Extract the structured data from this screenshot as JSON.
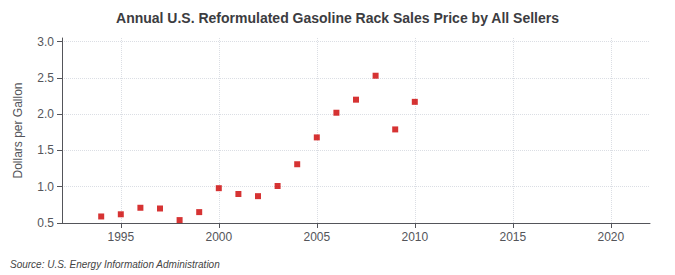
{
  "chart_data": {
    "type": "scatter",
    "title": "Annual U.S. Reformulated Gasoline Rack Sales Price by All Sellers",
    "ylabel": "Dollars per Gallon",
    "annotation": "Source: U.S. Energy Information Administration",
    "x": [
      1994,
      1995,
      1996,
      1997,
      1998,
      1999,
      2000,
      2001,
      2002,
      2003,
      2004,
      2005,
      2006,
      2007,
      2008,
      2009,
      2010
    ],
    "values": [
      0.59,
      0.62,
      0.71,
      0.7,
      0.54,
      0.65,
      0.98,
      0.9,
      0.87,
      1.01,
      1.31,
      1.68,
      2.02,
      2.2,
      2.53,
      1.79,
      2.17
    ],
    "color": "#cc0000",
    "marker": "square",
    "xlim": [
      1992,
      2022
    ],
    "xticks": [
      1995,
      2000,
      2005,
      2010,
      2015,
      2020
    ],
    "ylim": [
      0.5,
      3.05
    ],
    "yticks": [
      0.5,
      {
        "value": 1.0,
        "label": "1.0"
      },
      1.5,
      {
        "value": 2.0,
        "label": "2.0"
      },
      2.5,
      {
        "value": 3.0,
        "label": "3.0"
      }
    ],
    "grid": true
  }
}
